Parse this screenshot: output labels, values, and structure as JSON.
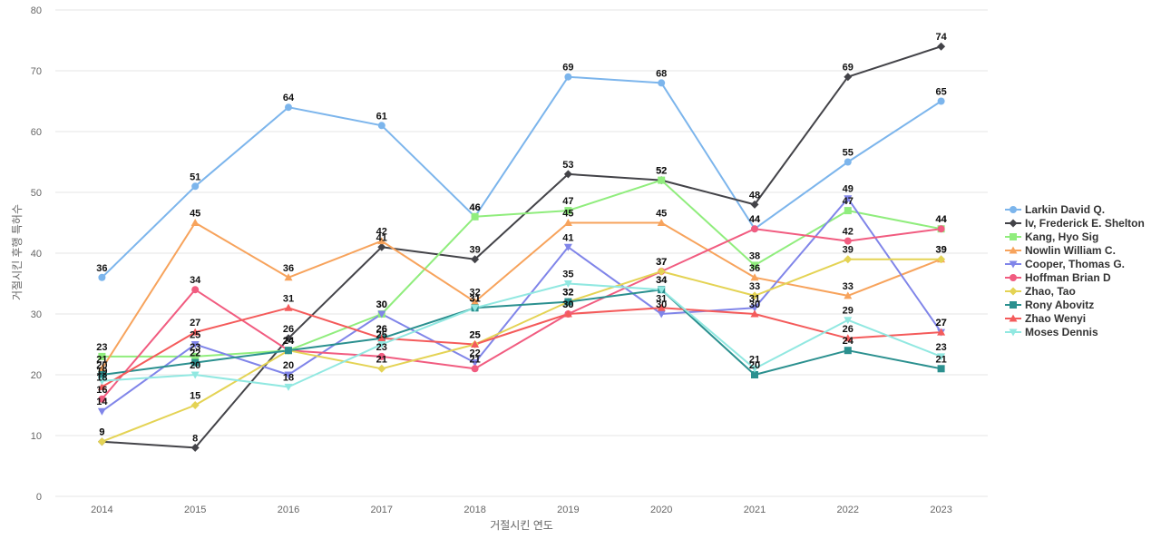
{
  "chart_data": {
    "type": "line",
    "title": "",
    "xlabel": "거절시킨 연도",
    "ylabel": "거절시킨 후행 특허수",
    "x": [
      "2014",
      "2015",
      "2016",
      "2017",
      "2018",
      "2019",
      "2020",
      "2021",
      "2022",
      "2023"
    ],
    "ylim": [
      0,
      80
    ],
    "yticks": [
      0,
      10,
      20,
      30,
      40,
      50,
      60,
      70,
      80
    ],
    "grid": true,
    "legend_position": "right",
    "series": [
      {
        "name": "Larkin David Q.",
        "color": "#7cb5ec",
        "marker": "circle",
        "values": [
          36,
          51,
          64,
          61,
          46,
          69,
          68,
          44,
          55,
          65
        ]
      },
      {
        "name": "Iv, Frederick E. Shelton",
        "color": "#434348",
        "marker": "diamond",
        "values": [
          9,
          8,
          26,
          41,
          39,
          53,
          52,
          48,
          69,
          74
        ]
      },
      {
        "name": "Kang, Hyo Sig",
        "color": "#90ed7d",
        "marker": "square",
        "values": [
          23,
          23,
          24,
          30,
          46,
          47,
          52,
          38,
          47,
          44
        ]
      },
      {
        "name": "Nowlin William C.",
        "color": "#f7a35c",
        "marker": "triangle",
        "values": [
          21,
          45,
          36,
          42,
          32,
          45,
          45,
          36,
          33,
          39
        ]
      },
      {
        "name": "Cooper, Thomas G.",
        "color": "#8085e9",
        "marker": "triangle-down",
        "values": [
          14,
          25,
          20,
          30,
          22,
          41,
          30,
          31,
          49,
          27
        ]
      },
      {
        "name": "Hoffman Brian D",
        "color": "#f15c80",
        "marker": "circle",
        "values": [
          16,
          34,
          24,
          23,
          21,
          30,
          37,
          44,
          42,
          44
        ]
      },
      {
        "name": "Zhao, Tao",
        "color": "#e4d354",
        "marker": "diamond",
        "values": [
          9,
          15,
          24,
          21,
          25,
          32,
          37,
          33,
          39,
          39
        ]
      },
      {
        "name": "Rony Abovitz",
        "color": "#2b908f",
        "marker": "square",
        "values": [
          20,
          22,
          24,
          26,
          31,
          32,
          34,
          20,
          24,
          21
        ]
      },
      {
        "name": "Zhao Wenyi",
        "color": "#f45b5b",
        "marker": "triangle",
        "values": [
          18,
          27,
          31,
          26,
          25,
          30,
          31,
          30,
          26,
          27
        ]
      },
      {
        "name": "Moses Dennis",
        "color": "#91e8e1",
        "marker": "triangle-down",
        "values": [
          19,
          20,
          18,
          25,
          31,
          35,
          34,
          21,
          29,
          23
        ]
      }
    ]
  }
}
